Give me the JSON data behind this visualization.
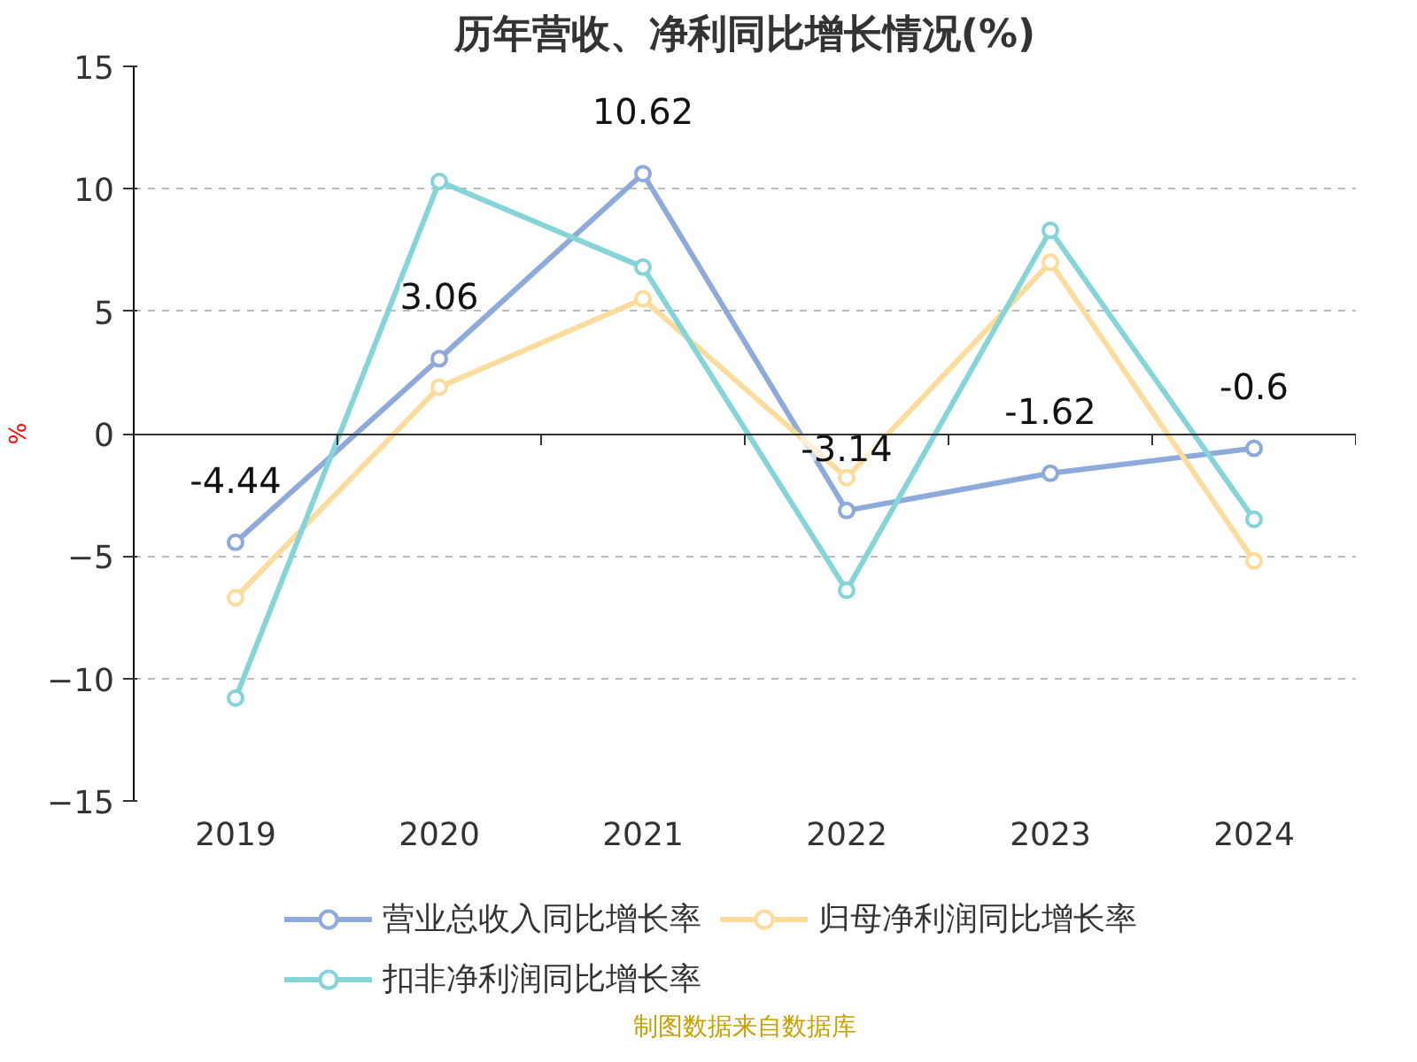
{
  "chart_data": {
    "type": "line",
    "title": "历年营收、净利同比增长情况(%)",
    "ylabel": "%",
    "categories": [
      "2019",
      "2020",
      "2021",
      "2022",
      "2023",
      "2024"
    ],
    "series": [
      {
        "name": "营业总收入同比增长率",
        "color": "#8eaadb",
        "values": [
          -4.44,
          3.06,
          10.62,
          -3.14,
          -1.62,
          -0.6
        ],
        "value_labels": [
          "-4.44",
          "3.06",
          "10.62",
          "-3.14",
          "-1.62",
          "-0.6"
        ]
      },
      {
        "name": "归母净利润同比增长率",
        "color": "#fcdc9c",
        "values": [
          -6.7,
          1.9,
          5.5,
          -1.8,
          7.0,
          -5.2
        ]
      },
      {
        "name": "扣非净利润同比增长率",
        "color": "#84d4d8",
        "values": [
          -10.8,
          10.3,
          6.8,
          -6.4,
          8.3,
          -3.5
        ]
      }
    ],
    "ylim": [
      -15,
      15
    ],
    "yticks": [
      -15,
      -10,
      -5,
      0,
      5,
      10,
      15
    ],
    "grid": "y",
    "legend": "bottom",
    "marker": "circle",
    "line_style": "solid",
    "annotations": [
      "制图数据来自数据库"
    ]
  }
}
